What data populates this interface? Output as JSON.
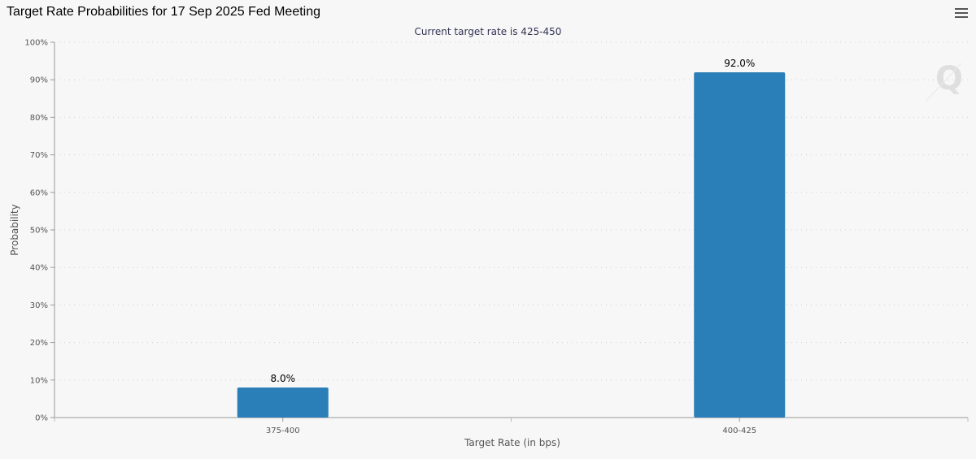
{
  "title": "Target Rate Probabilities for 17 Sep 2025 Fed Meeting",
  "menu_icon": "hamburger-menu-icon",
  "watermark_icon": "q-logo-watermark",
  "colors": {
    "bar": "#2a7fb8",
    "grid": "#cfcfcf",
    "background": "#f7f7f7"
  },
  "chart_data": {
    "type": "bar",
    "subtitle": "Current target rate is 425-450",
    "xlabel": "Target Rate (in bps)",
    "ylabel": "Probability",
    "categories": [
      "375-400",
      "400-425"
    ],
    "values": [
      8.0,
      92.0
    ],
    "data_labels": [
      "8.0%",
      "92.0%"
    ],
    "ylim": [
      0,
      100
    ],
    "yticks": [
      0,
      10,
      20,
      30,
      40,
      50,
      60,
      70,
      80,
      90,
      100
    ],
    "ytick_labels": [
      "0%",
      "10%",
      "20%",
      "30%",
      "40%",
      "50%",
      "60%",
      "70%",
      "80%",
      "90%",
      "100%"
    ],
    "grid": true
  }
}
